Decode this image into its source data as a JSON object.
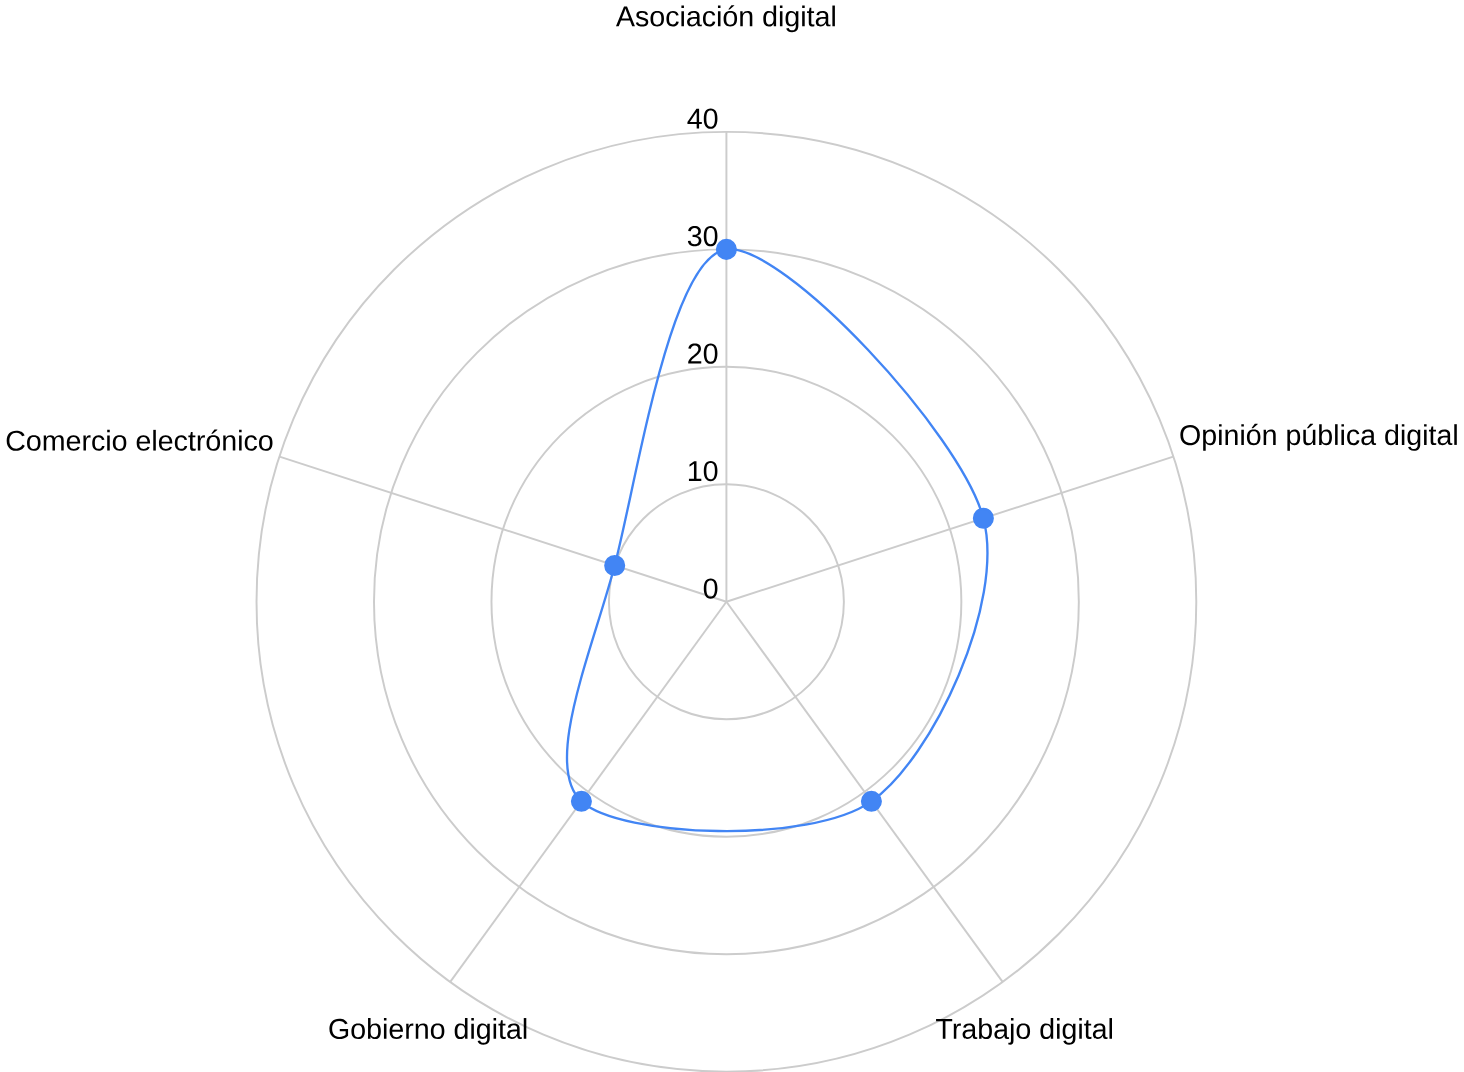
{
  "chart_data": {
    "type": "radar",
    "categories": [
      "Asociación digital",
      "Opinión pública digital",
      "Trabajo digital",
      "Gobierno digital",
      "Comercio electrónico"
    ],
    "series": [
      {
        "color": "#4285f4",
        "values": [
          30,
          23,
          21,
          21,
          10
        ]
      }
    ],
    "ylim": [
      0,
      40
    ],
    "yticks": [
      0,
      10,
      20,
      30,
      40
    ],
    "grid": true,
    "marker": "circle"
  }
}
